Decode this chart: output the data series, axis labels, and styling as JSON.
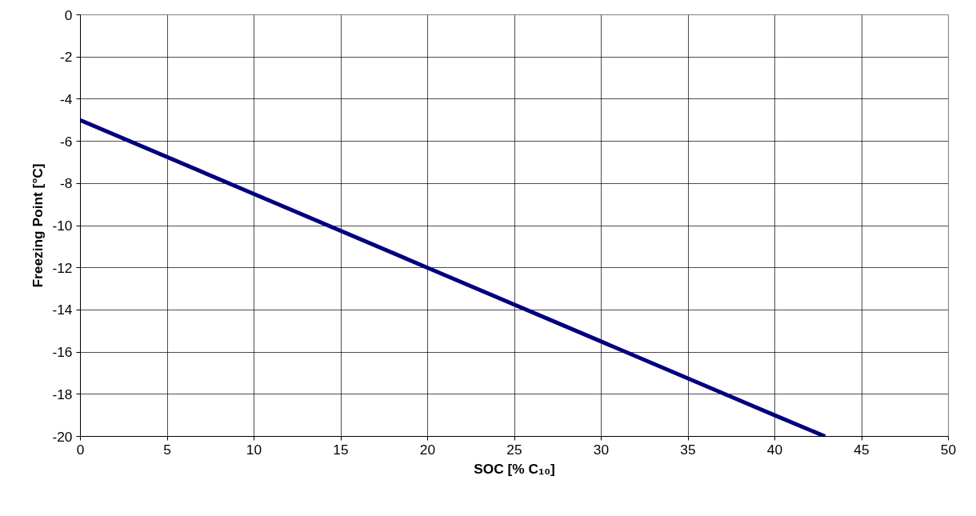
{
  "chart_data": {
    "type": "line",
    "xlabel": "SOC [% C₁₀]",
    "ylabel": "Freezing Point [°C]",
    "x": [
      0,
      10,
      20,
      30,
      40,
      42.9
    ],
    "series": [
      {
        "color": "#000080",
        "values": [
          -5,
          -8.5,
          -12,
          -15.5,
          -19,
          -20
        ]
      }
    ],
    "xlim": [
      0,
      50
    ],
    "xticks": [
      0,
      5,
      10,
      15,
      20,
      25,
      30,
      35,
      40,
      45,
      50
    ],
    "ylim": [
      -20,
      0
    ],
    "yticks": [
      -20,
      -18,
      -16,
      -14,
      -12,
      -10,
      -8,
      -6,
      -4,
      -2,
      0
    ],
    "grid": true,
    "marker": "none",
    "line_style": "solid"
  }
}
